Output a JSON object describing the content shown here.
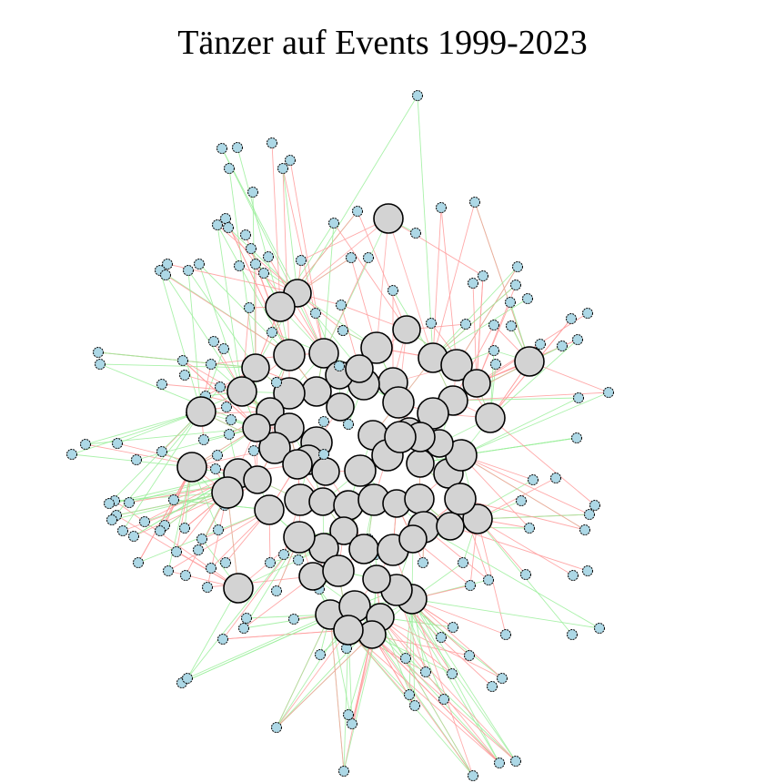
{
  "title": "Tänzer auf Events 1999-2023",
  "legend": {
    "node_types": [
      {
        "type": "event",
        "color": "#d3d3d3"
      },
      {
        "type": "dancer",
        "color": "#add8e6"
      }
    ],
    "edge_colors": [
      "#ff9a9a",
      "#9aee9a"
    ]
  },
  "colors": {
    "event_fill": "#d3d3d3",
    "dancer_fill": "#add8e6",
    "outline": "#000000",
    "edge_red": "#ff9a9a",
    "edge_green": "#9aee9a"
  }
}
